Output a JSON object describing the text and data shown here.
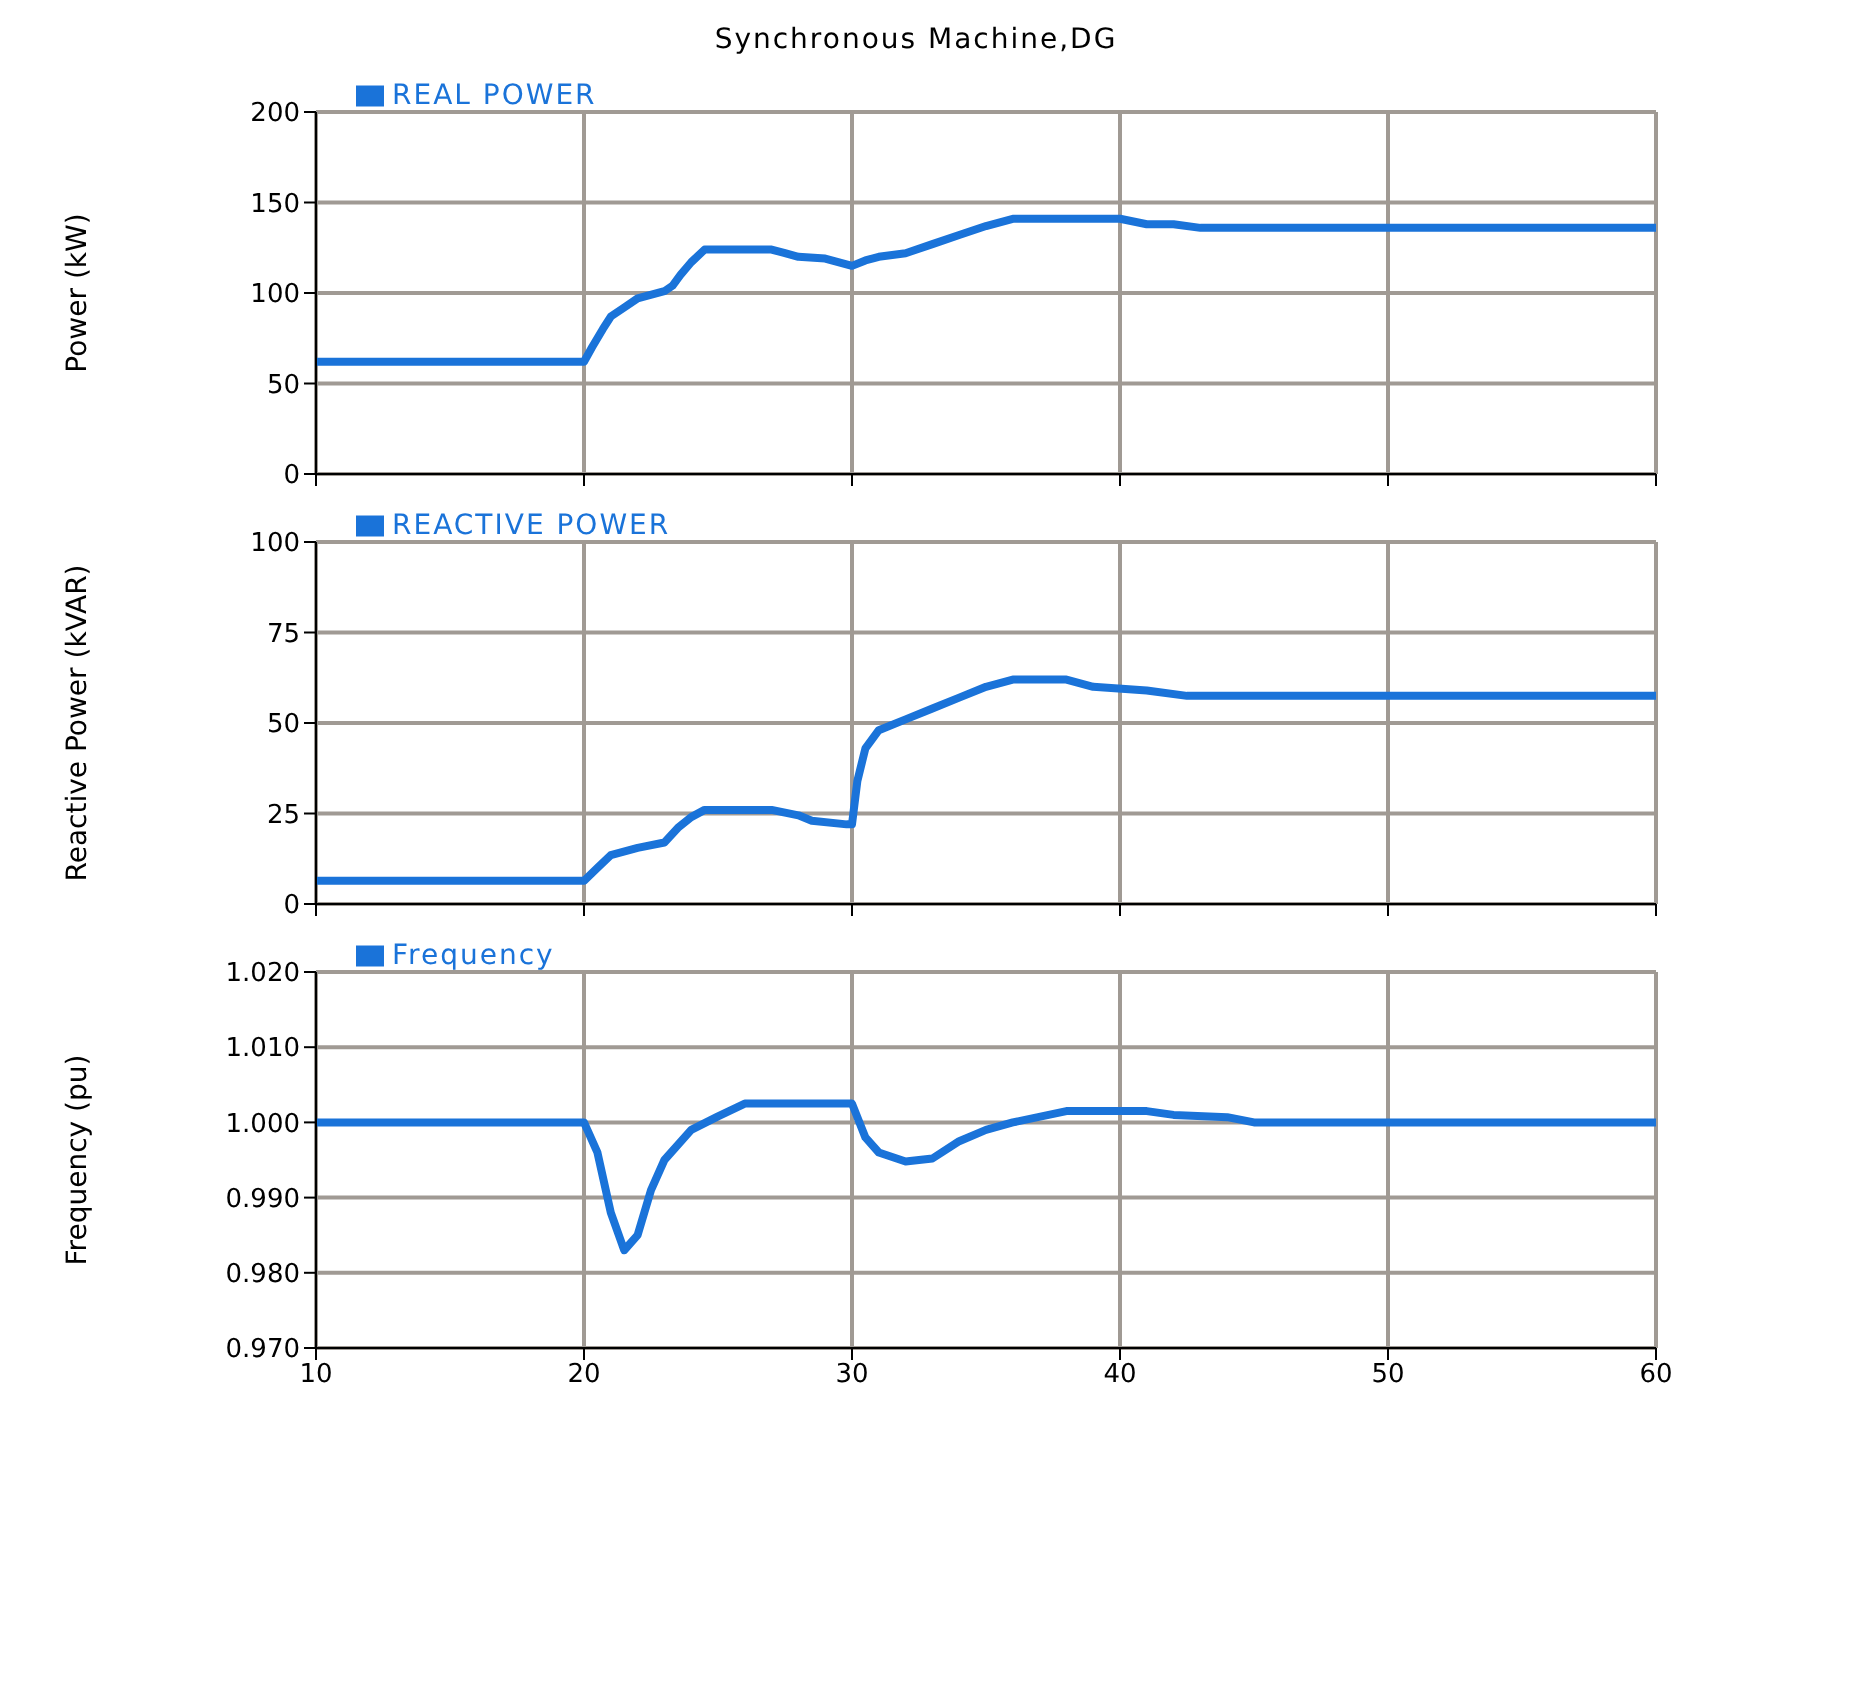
{
  "chart_data": [
    {
      "type": "line",
      "title": "Synchronous Machine,DG",
      "ylabel": "Power (kW)",
      "xlim": [
        10,
        60
      ],
      "xticks": [
        10,
        20,
        30,
        40,
        50,
        60
      ],
      "ylim": [
        0,
        200
      ],
      "yticks": [
        0,
        50,
        100,
        150,
        200
      ],
      "grid": true,
      "legend": "top left",
      "marker": "none",
      "line_style": "solid",
      "tick_labels": "y",
      "series": [
        {
          "name": "REAL POWER",
          "color": "#1a73d9",
          "x": [
            10,
            20,
            20.3,
            20.7,
            21,
            21.5,
            22,
            23,
            23.3,
            23.6,
            24,
            24.5,
            26,
            27,
            27.5,
            28,
            29,
            30,
            30.5,
            31,
            32,
            33,
            34,
            35,
            36,
            38,
            40,
            41,
            42,
            43,
            60
          ],
          "values": [
            62,
            62,
            70,
            80,
            87,
            92,
            97,
            101,
            104,
            110,
            117,
            124,
            124,
            124,
            122,
            120,
            119,
            115,
            118,
            120,
            122,
            127,
            132,
            137,
            141,
            141,
            141,
            138,
            138,
            136,
            136
          ]
        }
      ]
    },
    {
      "type": "line",
      "ylabel": "Reactive Power (kVAR)",
      "xlim": [
        10,
        60
      ],
      "xticks": [
        10,
        20,
        30,
        40,
        50,
        60
      ],
      "ylim": [
        0,
        100
      ],
      "yticks": [
        0,
        25,
        50,
        75,
        100
      ],
      "grid": true,
      "legend": "top left",
      "marker": "none",
      "line_style": "solid",
      "tick_labels": "y",
      "series": [
        {
          "name": "REACTIVE POWER",
          "color": "#1a73d9",
          "x": [
            10,
            20,
            20.5,
            21,
            22,
            23,
            23.5,
            24,
            24.5,
            27,
            28,
            28.5,
            29.8,
            30,
            30.2,
            30.5,
            31,
            32,
            33,
            34,
            35,
            36,
            38,
            39,
            41,
            42.5,
            60
          ],
          "values": [
            6.4,
            6.4,
            10,
            13.5,
            15.5,
            17,
            21,
            24,
            26,
            26,
            24.5,
            23,
            22,
            22,
            34,
            43,
            48,
            51,
            54,
            57,
            60,
            62,
            62,
            60,
            59,
            57.5,
            57.5
          ]
        }
      ]
    },
    {
      "type": "line",
      "ylabel": "Frequency (pu)",
      "xlim": [
        10,
        60
      ],
      "xticks": [
        10,
        20,
        30,
        40,
        50,
        60
      ],
      "ylim": [
        0.97,
        1.02
      ],
      "yticks": [
        {
          "value": 0.97,
          "label": "0.970"
        },
        {
          "value": 0.98,
          "label": "0.980"
        },
        {
          "value": 0.99,
          "label": "0.990"
        },
        {
          "value": 1.0,
          "label": "1.000"
        },
        {
          "value": 1.01,
          "label": "1.010"
        },
        {
          "value": 1.02,
          "label": "1.020"
        }
      ],
      "grid": true,
      "legend": "top left",
      "marker": "none",
      "line_style": "solid",
      "series": [
        {
          "name": "Frequency",
          "color": "#1a73d9",
          "x": [
            10,
            20,
            20.5,
            21,
            21.5,
            22,
            22.5,
            23,
            24,
            25,
            26,
            30,
            30.5,
            31,
            32,
            33,
            34,
            35,
            36,
            38,
            41,
            42,
            44,
            45,
            60
          ],
          "values": [
            1.0,
            1.0,
            0.996,
            0.988,
            0.983,
            0.985,
            0.991,
            0.995,
            0.999,
            1.0008,
            1.0025,
            1.0025,
            0.998,
            0.996,
            0.9948,
            0.9952,
            0.9975,
            0.999,
            1.0,
            1.0015,
            1.0015,
            1.001,
            1.0007,
            1.0,
            1.0
          ]
        }
      ]
    }
  ]
}
